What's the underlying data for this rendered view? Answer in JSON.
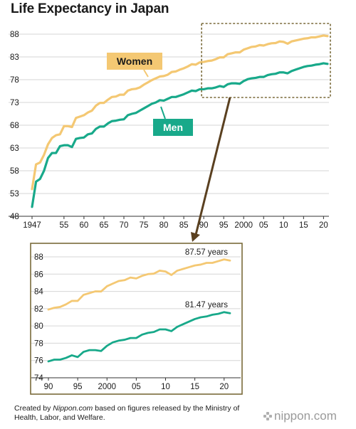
{
  "title": "Life Expectancy in Japan",
  "footer": {
    "prefix": "Created by ",
    "source": "Nippon.com",
    "suffix": " based on figures released by the Ministry of Health, Labor, and Welfare."
  },
  "logo_text": "nippon.com",
  "colors": {
    "women": "#f4c873",
    "men": "#18a98a",
    "arrow": "#5a4020",
    "grid": "#d6d6d6",
    "inset_border": "#7a6a3a"
  },
  "chart_data": [
    {
      "type": "line",
      "title": "Life Expectancy in Japan",
      "xlabel": "",
      "ylabel": "",
      "xlim": [
        1947,
        2021
      ],
      "ylim": [
        48,
        88
      ],
      "yticks": [
        48,
        53,
        58,
        63,
        68,
        73,
        78,
        83,
        88
      ],
      "xticks": [
        {
          "x": 1947,
          "label": "1947"
        },
        {
          "x": 1955,
          "label": "55"
        },
        {
          "x": 1960,
          "label": "60"
        },
        {
          "x": 1965,
          "label": "65"
        },
        {
          "x": 1970,
          "label": "70"
        },
        {
          "x": 1975,
          "label": "75"
        },
        {
          "x": 1980,
          "label": "80"
        },
        {
          "x": 1985,
          "label": "85"
        },
        {
          "x": 1990,
          "label": "90"
        },
        {
          "x": 1995,
          "label": "95"
        },
        {
          "x": 2000,
          "label": "2000"
        },
        {
          "x": 2005,
          "label": "05"
        },
        {
          "x": 2010,
          "label": "10"
        },
        {
          "x": 2015,
          "label": "15"
        },
        {
          "x": 2020,
          "label": "20"
        }
      ],
      "grid": true,
      "series": [
        {
          "name": "Women",
          "x": [
            1947,
            1948,
            1949,
            1950,
            1951,
            1952,
            1953,
            1954,
            1955,
            1956,
            1957,
            1958,
            1959,
            1960,
            1961,
            1962,
            1963,
            1964,
            1965,
            1966,
            1967,
            1968,
            1969,
            1970,
            1971,
            1972,
            1973,
            1974,
            1975,
            1976,
            1977,
            1978,
            1979,
            1980,
            1981,
            1982,
            1983,
            1984,
            1985,
            1986,
            1987,
            1988,
            1989,
            1990,
            1991,
            1992,
            1993,
            1994,
            1995,
            1996,
            1997,
            1998,
            1999,
            2000,
            2001,
            2002,
            2003,
            2004,
            2005,
            2006,
            2007,
            2008,
            2009,
            2010,
            2011,
            2012,
            2013,
            2014,
            2015,
            2016,
            2017,
            2018,
            2019,
            2020,
            2021
          ],
          "values": [
            53.96,
            59.4,
            59.8,
            61.5,
            63.8,
            65.2,
            65.8,
            66.0,
            67.8,
            67.8,
            67.6,
            69.6,
            69.9,
            70.2,
            70.8,
            71.2,
            72.3,
            72.9,
            72.9,
            73.6,
            74.2,
            74.3,
            74.7,
            74.7,
            75.6,
            75.9,
            76.0,
            76.3,
            76.9,
            77.4,
            77.9,
            78.3,
            78.7,
            78.8,
            79.1,
            79.7,
            79.8,
            80.2,
            80.5,
            80.9,
            81.4,
            81.3,
            81.8,
            81.9,
            82.1,
            82.2,
            82.5,
            82.9,
            82.9,
            83.6,
            83.8,
            84.0,
            83.99,
            84.6,
            84.9,
            85.2,
            85.3,
            85.6,
            85.5,
            85.8,
            86.0,
            86.05,
            86.4,
            86.3,
            85.9,
            86.4,
            86.6,
            86.8,
            87.0,
            87.1,
            87.3,
            87.3,
            87.5,
            87.7,
            87.57
          ]
        },
        {
          "name": "Men",
          "x": [
            1947,
            1948,
            1949,
            1950,
            1951,
            1952,
            1953,
            1954,
            1955,
            1956,
            1957,
            1958,
            1959,
            1960,
            1961,
            1962,
            1963,
            1964,
            1965,
            1966,
            1967,
            1968,
            1969,
            1970,
            1971,
            1972,
            1973,
            1974,
            1975,
            1976,
            1977,
            1978,
            1979,
            1980,
            1981,
            1982,
            1983,
            1984,
            1985,
            1986,
            1987,
            1988,
            1989,
            1990,
            1991,
            1992,
            1993,
            1994,
            1995,
            1996,
            1997,
            1998,
            1999,
            2000,
            2001,
            2002,
            2003,
            2004,
            2005,
            2006,
            2007,
            2008,
            2009,
            2010,
            2011,
            2012,
            2013,
            2014,
            2015,
            2016,
            2017,
            2018,
            2019,
            2020,
            2021
          ],
          "values": [
            50.06,
            55.6,
            56.2,
            58.0,
            60.8,
            61.9,
            61.9,
            63.4,
            63.6,
            63.6,
            63.2,
            65.0,
            65.2,
            65.3,
            66.0,
            66.2,
            67.2,
            67.7,
            67.7,
            68.4,
            68.9,
            69.0,
            69.2,
            69.3,
            70.2,
            70.5,
            70.7,
            71.2,
            71.7,
            72.2,
            72.7,
            73.0,
            73.5,
            73.4,
            73.8,
            74.2,
            74.2,
            74.5,
            74.8,
            75.2,
            75.6,
            75.5,
            75.9,
            75.9,
            76.1,
            76.1,
            76.3,
            76.6,
            76.4,
            77.0,
            77.2,
            77.2,
            77.1,
            77.7,
            78.1,
            78.3,
            78.4,
            78.6,
            78.6,
            79.0,
            79.2,
            79.3,
            79.6,
            79.6,
            79.4,
            79.9,
            80.2,
            80.5,
            80.8,
            81.0,
            81.1,
            81.3,
            81.4,
            81.6,
            81.47
          ]
        }
      ],
      "labels": [
        {
          "text": "Women",
          "series": "Women"
        },
        {
          "text": "Men",
          "series": "Men"
        }
      ]
    },
    {
      "type": "line",
      "xlim": [
        1990,
        2021
      ],
      "ylim": [
        74,
        88
      ],
      "yticks": [
        74,
        76,
        78,
        80,
        82,
        84,
        86,
        88
      ],
      "xticks": [
        {
          "x": 1990,
          "label": "90"
        },
        {
          "x": 1995,
          "label": "95"
        },
        {
          "x": 2000,
          "label": "2000"
        },
        {
          "x": 2005,
          "label": "05"
        },
        {
          "x": 2010,
          "label": "10"
        },
        {
          "x": 2015,
          "label": "15"
        },
        {
          "x": 2020,
          "label": "20"
        }
      ],
      "grid": true,
      "series": [
        {
          "name": "Women",
          "x": [
            1990,
            1991,
            1992,
            1993,
            1994,
            1995,
            1996,
            1997,
            1998,
            1999,
            2000,
            2001,
            2002,
            2003,
            2004,
            2005,
            2006,
            2007,
            2008,
            2009,
            2010,
            2011,
            2012,
            2013,
            2014,
            2015,
            2016,
            2017,
            2018,
            2019,
            2020,
            2021
          ],
          "values": [
            81.9,
            82.1,
            82.2,
            82.5,
            82.9,
            82.9,
            83.6,
            83.8,
            84.0,
            83.99,
            84.6,
            84.9,
            85.2,
            85.3,
            85.6,
            85.5,
            85.8,
            86.0,
            86.05,
            86.4,
            86.3,
            85.9,
            86.4,
            86.6,
            86.8,
            87.0,
            87.1,
            87.3,
            87.3,
            87.5,
            87.7,
            87.57
          ]
        },
        {
          "name": "Men",
          "x": [
            1990,
            1991,
            1992,
            1993,
            1994,
            1995,
            1996,
            1997,
            1998,
            1999,
            2000,
            2001,
            2002,
            2003,
            2004,
            2005,
            2006,
            2007,
            2008,
            2009,
            2010,
            2011,
            2012,
            2013,
            2014,
            2015,
            2016,
            2017,
            2018,
            2019,
            2020,
            2021
          ],
          "values": [
            75.9,
            76.1,
            76.1,
            76.3,
            76.6,
            76.4,
            77.0,
            77.2,
            77.2,
            77.1,
            77.7,
            78.1,
            78.3,
            78.4,
            78.6,
            78.6,
            79.0,
            79.2,
            79.3,
            79.6,
            79.6,
            79.4,
            79.9,
            80.2,
            80.5,
            80.8,
            81.0,
            81.1,
            81.3,
            81.4,
            81.6,
            81.47
          ]
        }
      ],
      "annotations": [
        {
          "text": "87.57 years",
          "series": "Women"
        },
        {
          "text": "81.47 years",
          "series": "Men"
        }
      ]
    }
  ]
}
